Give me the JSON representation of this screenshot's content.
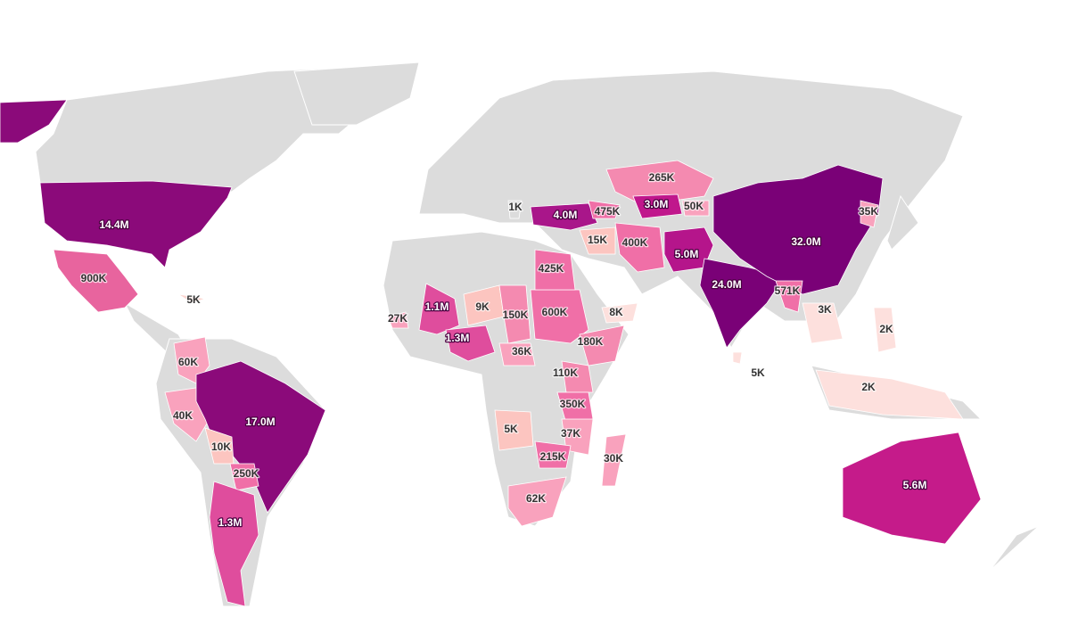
{
  "regions": [
    {
      "value": 14400000,
      "label": "14.4M",
      "color": "#8b0a7a"
    },
    {
      "value": 900000,
      "label": "900K",
      "color": "#e8649e"
    },
    {
      "value": 5000,
      "label": "5K",
      "color": "#fcd5d0"
    },
    {
      "value": 60000,
      "label": "60K",
      "color": "#f9a2bd"
    },
    {
      "value": 40000,
      "label": "40K",
      "color": "#f9a2bd"
    },
    {
      "value": 17000000,
      "label": "17.0M",
      "color": "#8b0a7a"
    },
    {
      "value": 10000,
      "label": "10K",
      "color": "#fcc5c0"
    },
    {
      "value": 250000,
      "label": "250K",
      "color": "#f06fa7"
    },
    {
      "value": 1300000,
      "label": "1.3M",
      "color": "#df4d9d"
    },
    {
      "value": 27000,
      "label": "27K",
      "color": "#f9a2bd"
    },
    {
      "value": 1100000,
      "label": "1.1M",
      "color": "#df4d9d"
    },
    {
      "value": 1300000,
      "label": "1.3M",
      "color": "#df4d9d"
    },
    {
      "value": 9000,
      "label": "9K",
      "color": "#fcc5c0"
    },
    {
      "value": 150000,
      "label": "150K",
      "color": "#f48ab0"
    },
    {
      "value": 36000,
      "label": "36K",
      "color": "#f9a2bd"
    },
    {
      "value": 600000,
      "label": "600K",
      "color": "#f06fa7"
    },
    {
      "value": 425000,
      "label": "425K",
      "color": "#f06fa7"
    },
    {
      "value": 180000,
      "label": "180K",
      "color": "#f48ab0"
    },
    {
      "value": 110000,
      "label": "110K",
      "color": "#f48ab0"
    },
    {
      "value": 350000,
      "label": "350K",
      "color": "#f06fa7"
    },
    {
      "value": 5000,
      "label": "5K",
      "color": "#fcc5c0"
    },
    {
      "value": 37000,
      "label": "37K",
      "color": "#f9a2bd"
    },
    {
      "value": 215000,
      "label": "215K",
      "color": "#f06fa7"
    },
    {
      "value": 30000,
      "label": "30K",
      "color": "#f9a2bd"
    },
    {
      "value": 62000,
      "label": "62K",
      "color": "#f9a2bd"
    },
    {
      "value": 1000,
      "label": "1K",
      "color": "#dcdcdc"
    },
    {
      "value": 4000000,
      "label": "4.0M",
      "color": "#a9168a"
    },
    {
      "value": 475000,
      "label": "475K",
      "color": "#f06fa7"
    },
    {
      "value": 400000,
      "label": "400K",
      "color": "#f06fa7"
    },
    {
      "value": 15000,
      "label": "15K",
      "color": "#fcc5c0"
    },
    {
      "value": 265000,
      "label": "265K",
      "color": "#f48ab0"
    },
    {
      "value": 3000000,
      "label": "3.0M",
      "color": "#c0178c"
    },
    {
      "value": 50000,
      "label": "50K",
      "color": "#f9a2bd"
    },
    {
      "value": 5000000,
      "label": "5.0M",
      "color": "#b5158b"
    },
    {
      "value": 24000000,
      "label": "24.0M",
      "color": "#7a0177"
    },
    {
      "value": 32000000,
      "label": "32.0M",
      "color": "#7a0177"
    },
    {
      "value": 35000,
      "label": "35K",
      "color": "#f9a2bd"
    },
    {
      "value": 571000,
      "label": "571K",
      "color": "#f06fa7"
    },
    {
      "value": 3000,
      "label": "3K",
      "color": "#fde0dd"
    },
    {
      "value": 8000,
      "label": "8K",
      "color": "#fde0dd"
    },
    {
      "value": 5000,
      "label": "5K",
      "color": "#fde0dd"
    },
    {
      "value": 2000,
      "label": "2K",
      "color": "#fde0dd"
    },
    {
      "value": 2000,
      "label": "2K",
      "color": "#fde0dd"
    },
    {
      "value": 5600000,
      "label": "5.6M",
      "color": "#c51b8a"
    }
  ]
}
